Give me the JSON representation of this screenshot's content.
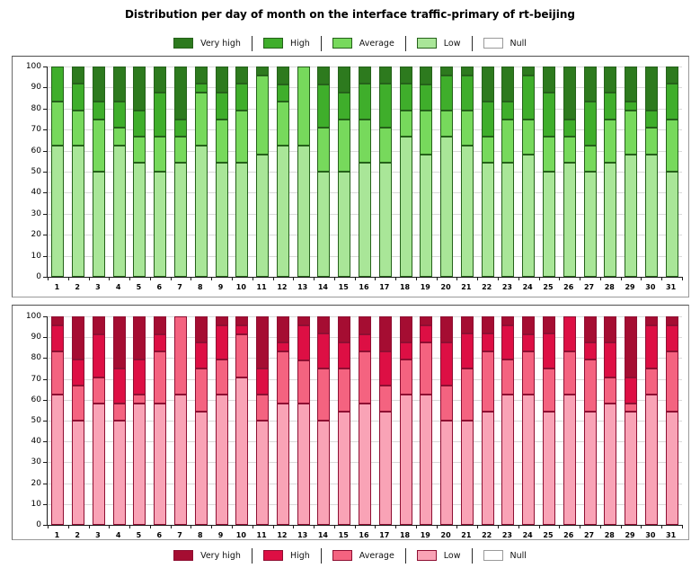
{
  "title": "Distribution per day of month on the interface traffic-primary of rt-beijing",
  "legend_labels": [
    "Very high",
    "High",
    "Average",
    "Low",
    "Null"
  ],
  "axis": {
    "ymin": 0,
    "ymax": 100,
    "ystep": 10
  },
  "chart_data": [
    {
      "id": "top",
      "type": "bar",
      "stacked": true,
      "palette": "green",
      "legend_position": "top",
      "grid": true,
      "ylim": [
        0,
        100
      ],
      "yticks": [
        0,
        10,
        20,
        30,
        40,
        50,
        60,
        70,
        80,
        90,
        100
      ],
      "stroke": "#25611a",
      "null_border": "#9a9a9a",
      "categories": [
        1,
        2,
        3,
        4,
        5,
        6,
        7,
        8,
        9,
        10,
        11,
        12,
        13,
        14,
        15,
        16,
        17,
        18,
        19,
        20,
        21,
        22,
        23,
        24,
        25,
        26,
        27,
        28,
        29,
        30,
        31
      ],
      "series": [
        {
          "name": "Low",
          "color": "#a9e698",
          "values": [
            62.5,
            62.5,
            50,
            62.5,
            54.2,
            50,
            54.2,
            62.5,
            54.2,
            54.2,
            58.3,
            62.5,
            62.5,
            50,
            50,
            54.2,
            54.2,
            66.7,
            58.3,
            66.7,
            62.5,
            54.2,
            54.2,
            58.3,
            50,
            54.2,
            50,
            54.2,
            58.3,
            58.3,
            50
          ]
        },
        {
          "name": "Average",
          "color": "#77d95c",
          "values": [
            20.8,
            16.7,
            25,
            8.3,
            12.5,
            16.7,
            12.5,
            25,
            20.8,
            25,
            37.5,
            20.8,
            37.5,
            20.8,
            25,
            20.8,
            16.7,
            12.5,
            20.8,
            12.5,
            16.7,
            12.5,
            20.8,
            16.7,
            16.7,
            12.5,
            12.5,
            20.8,
            20.8,
            12.5,
            25
          ]
        },
        {
          "name": "High",
          "color": "#3fae2b",
          "values": [
            16.7,
            12.5,
            8.3,
            12.5,
            12.5,
            20.8,
            8.3,
            4.2,
            12.5,
            12.5,
            0,
            8.3,
            0,
            20.8,
            12.5,
            16.7,
            20.8,
            12.5,
            12.5,
            16.7,
            16.7,
            16.7,
            8.3,
            20.8,
            20.8,
            8.3,
            20.8,
            12.5,
            4.2,
            8.3,
            16.7
          ]
        },
        {
          "name": "Very high",
          "color": "#2d7a1e",
          "values": [
            0,
            8.3,
            16.7,
            16.7,
            20.8,
            12.5,
            25,
            8.3,
            12.5,
            8.3,
            4.2,
            8.3,
            0,
            8.3,
            12.5,
            8.3,
            8.3,
            8.3,
            8.3,
            4.2,
            4.2,
            16.7,
            16.7,
            4.2,
            12.5,
            25,
            16.7,
            12.5,
            16.7,
            20.8,
            8.3
          ]
        },
        {
          "name": "Null",
          "color": "#ffffff",
          "values": [
            0,
            0,
            0,
            0,
            0,
            0,
            0,
            0,
            0,
            0,
            0,
            0,
            0,
            0,
            0,
            0,
            0,
            0,
            0,
            0,
            0,
            0,
            0,
            0,
            0,
            0,
            0,
            0,
            0,
            0,
            0
          ]
        }
      ]
    },
    {
      "id": "bottom",
      "type": "bar",
      "stacked": true,
      "palette": "red",
      "legend_position": "bottom",
      "grid": true,
      "ylim": [
        0,
        100
      ],
      "yticks": [
        0,
        10,
        20,
        30,
        40,
        50,
        60,
        70,
        80,
        90,
        100
      ],
      "stroke": "#8e0f32",
      "null_border": "#9a9a9a",
      "categories": [
        1,
        2,
        3,
        4,
        5,
        6,
        7,
        8,
        9,
        10,
        11,
        12,
        13,
        14,
        15,
        16,
        17,
        18,
        19,
        20,
        21,
        22,
        23,
        24,
        25,
        26,
        27,
        28,
        29,
        30,
        31
      ],
      "series": [
        {
          "name": "Low",
          "color": "#f9a3b6",
          "values": [
            62.5,
            50,
            58.3,
            50,
            58.3,
            58.3,
            62.5,
            54.2,
            62.5,
            70.8,
            50,
            58.3,
            58.3,
            50,
            54.2,
            58.3,
            54.2,
            62.5,
            62.5,
            50,
            50,
            54.2,
            62.5,
            62.5,
            54.2,
            62.5,
            54.2,
            58.3,
            54.2,
            62.5,
            54.2
          ]
        },
        {
          "name": "Average",
          "color": "#f46380",
          "values": [
            20.8,
            16.7,
            12.5,
            8.3,
            4.2,
            25,
            37.5,
            20.8,
            16.7,
            20.8,
            12.5,
            25,
            20.8,
            25,
            20.8,
            25,
            12.5,
            16.7,
            25,
            16.7,
            25,
            29.2,
            16.7,
            20.8,
            20.8,
            20.8,
            25,
            12.5,
            4.2,
            12.5,
            29.2
          ]
        },
        {
          "name": "High",
          "color": "#dd0f44",
          "values": [
            12.5,
            12.5,
            20.8,
            16.7,
            16.7,
            8.3,
            0,
            12.5,
            16.7,
            4.2,
            12.5,
            4.2,
            16.7,
            16.7,
            12.5,
            8.3,
            16.7,
            8.3,
            8.3,
            20.8,
            16.7,
            8.3,
            16.7,
            8.3,
            16.7,
            16.7,
            8.3,
            16.7,
            12.5,
            20.8,
            12.5
          ]
        },
        {
          "name": "Very high",
          "color": "#a50d32",
          "values": [
            4.2,
            20.8,
            8.3,
            25,
            20.8,
            8.3,
            0,
            12.5,
            4.2,
            4.2,
            25,
            12.5,
            4.2,
            8.3,
            12.5,
            8.3,
            16.7,
            12.5,
            4.2,
            12.5,
            8.3,
            8.3,
            4.2,
            8.3,
            8.3,
            0,
            12.5,
            12.5,
            29.2,
            4.2,
            4.2
          ]
        },
        {
          "name": "Null",
          "color": "#ffffff",
          "values": [
            0,
            0,
            0,
            0,
            0,
            0,
            0,
            0,
            0,
            0,
            0,
            0,
            0,
            0,
            0,
            0,
            0,
            0,
            0,
            0,
            0,
            0,
            0,
            0,
            0,
            0,
            0,
            0,
            0,
            0,
            0
          ]
        }
      ]
    }
  ]
}
